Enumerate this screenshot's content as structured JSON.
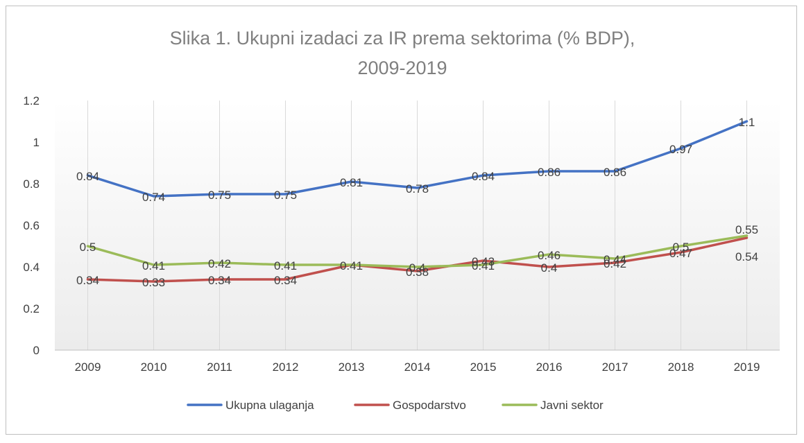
{
  "chart_data": {
    "type": "line",
    "title_line1": "Slika 1.  Ukupni izadaci za IR prema sektorima (% BDP),",
    "title_line2": "2009-2019",
    "xlabel": "",
    "ylabel": "",
    "categories": [
      "2009",
      "2010",
      "2011",
      "2012",
      "2013",
      "2014",
      "2015",
      "2016",
      "2017",
      "2018",
      "2019"
    ],
    "ylim": [
      0,
      1.2
    ],
    "yticks": [
      "0",
      "0.2",
      "0.4",
      "0.6",
      "0.8",
      "1",
      "1.2"
    ],
    "grid": "vertical",
    "legend_position": "bottom",
    "series": [
      {
        "name": "Ukupna ulaganja",
        "color": "#4472c4",
        "values": [
          0.84,
          0.74,
          0.75,
          0.75,
          0.81,
          0.78,
          0.84,
          0.86,
          0.86,
          0.97,
          1.1
        ],
        "labels": [
          "0.84",
          "0.74",
          "0.75",
          "0.75",
          "0.81",
          "0.78",
          "0.84",
          "0.86",
          "0.86",
          "0.97",
          "1.1"
        ]
      },
      {
        "name": "Gospodarstvo",
        "color": "#c0504d",
        "values": [
          0.34,
          0.33,
          0.34,
          0.34,
          0.41,
          0.38,
          0.43,
          0.4,
          0.42,
          0.47,
          0.54
        ],
        "labels": [
          "0.34",
          "0.33",
          "0.34",
          "0.34",
          "0.41",
          "0.38",
          "0.43",
          "0.4",
          "0.42",
          "0.47",
          "0.54"
        ]
      },
      {
        "name": "Javni sektor",
        "color": "#9bbb59",
        "values": [
          0.5,
          0.41,
          0.42,
          0.41,
          0.41,
          0.4,
          0.41,
          0.46,
          0.44,
          0.5,
          0.55
        ],
        "labels": [
          "0.5",
          "0.41",
          "0.42",
          "0.41",
          "",
          "0.4",
          "0.41",
          "0.46",
          "0.44",
          "0.5",
          "0.55"
        ]
      }
    ]
  }
}
